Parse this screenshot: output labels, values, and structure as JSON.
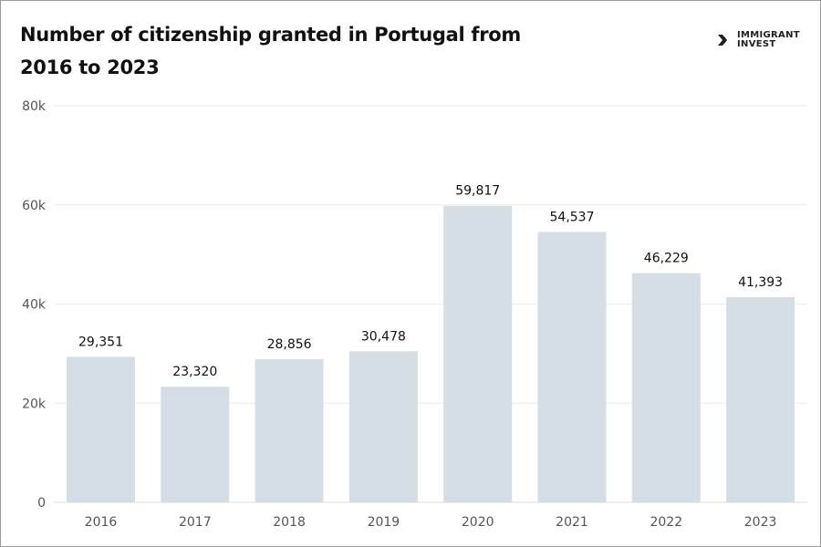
{
  "chart_data": {
    "type": "bar",
    "title": "Number of citizenship granted in Portugal from 2016 to 2023",
    "categories": [
      "2016",
      "2017",
      "2018",
      "2019",
      "2020",
      "2021",
      "2022",
      "2023"
    ],
    "values": [
      29351,
      23320,
      28856,
      30478,
      59817,
      54537,
      46229,
      41393
    ],
    "data_labels": [
      "29,351",
      "23,320",
      "28,856",
      "30,478",
      "59,817",
      "54,537",
      "46,229",
      "41,393"
    ],
    "xlabel": "",
    "ylabel": "",
    "ylim": [
      0,
      80000
    ],
    "yticks": [
      0,
      20000,
      40000,
      60000,
      80000
    ],
    "ytick_labels": [
      "0",
      "20k",
      "40k",
      "60k",
      "80k"
    ],
    "grid": true,
    "bar_color": "#d6dee5"
  },
  "logo": {
    "line1": "IMMIGRANT",
    "line2": "INVEST"
  }
}
